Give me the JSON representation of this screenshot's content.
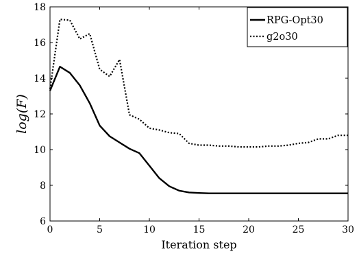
{
  "chart_data": {
    "type": "line",
    "xlabel": "Iteration step",
    "ylabel": "log(F)",
    "xlim": [
      0,
      30
    ],
    "ylim": [
      6,
      18
    ],
    "xticks": [
      0,
      5,
      10,
      15,
      20,
      25,
      30
    ],
    "yticks": [
      6,
      8,
      10,
      12,
      14,
      16,
      18
    ],
    "grid": false,
    "legend_position": "top-right",
    "x": [
      0,
      1,
      2,
      3,
      4,
      5,
      6,
      7,
      8,
      9,
      10,
      11,
      12,
      13,
      14,
      15,
      16,
      17,
      18,
      19,
      20,
      21,
      22,
      23,
      24,
      25,
      26,
      27,
      28,
      29,
      30
    ],
    "series": [
      {
        "name": "RPG-Opt30",
        "style": "solid",
        "color": "#000000",
        "values": [
          13.3,
          14.65,
          14.3,
          13.6,
          12.6,
          11.35,
          10.75,
          10.4,
          10.05,
          9.8,
          9.1,
          8.4,
          7.95,
          7.7,
          7.6,
          7.57,
          7.55,
          7.55,
          7.55,
          7.55,
          7.55,
          7.55,
          7.55,
          7.55,
          7.55,
          7.55,
          7.55,
          7.55,
          7.55,
          7.55,
          7.55
        ]
      },
      {
        "name": "g2o30",
        "style": "dotted",
        "color": "#000000",
        "values": [
          13.4,
          17.3,
          17.25,
          16.2,
          16.5,
          14.5,
          14.1,
          15.05,
          11.95,
          11.7,
          11.2,
          11.1,
          10.95,
          10.9,
          10.35,
          10.25,
          10.25,
          10.2,
          10.2,
          10.15,
          10.15,
          10.15,
          10.2,
          10.2,
          10.25,
          10.35,
          10.4,
          10.6,
          10.6,
          10.8,
          10.8
        ]
      }
    ]
  }
}
